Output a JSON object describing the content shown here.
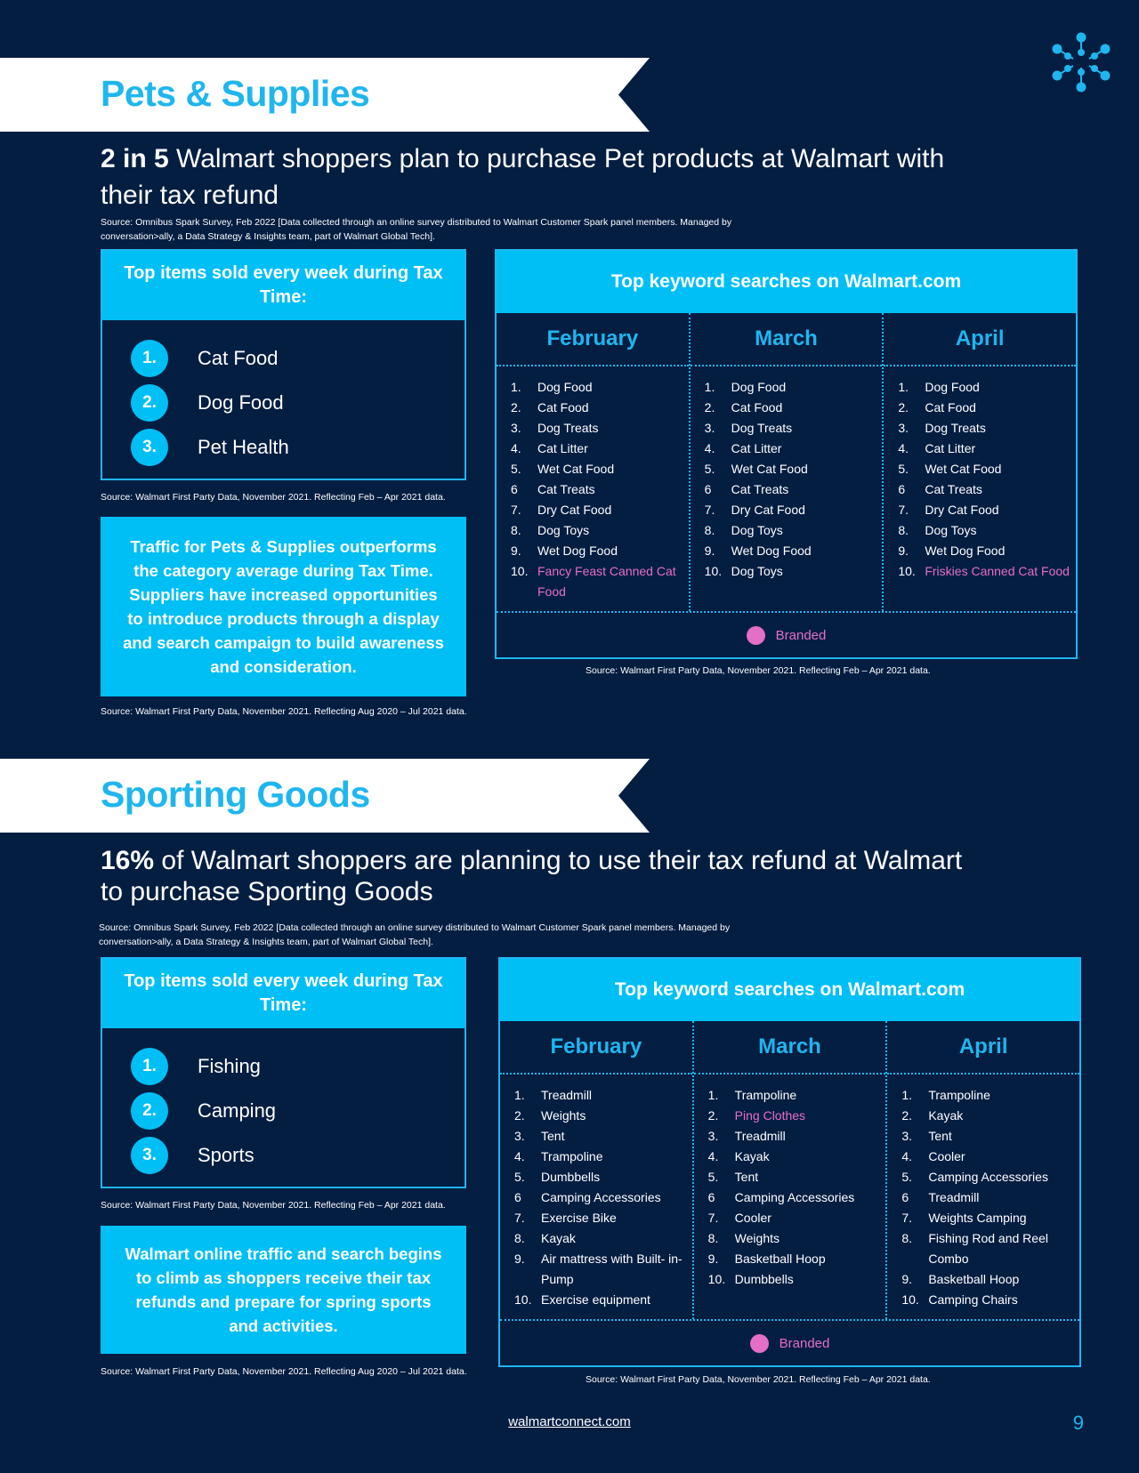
{
  "colors": {
    "background": "#041e42",
    "accent": "#00bff5",
    "branded": "#e46fc7",
    "banner": "#ffffff"
  },
  "logo": {
    "icon": "spark-icon"
  },
  "sections": [
    {
      "title": "Pets & Supplies",
      "headline_bold": "2 in 5",
      "headline_rest": " Walmart shoppers plan to purchase Pet products at Walmart with their tax refund",
      "survey_source": "Source: Omnibus Spark Survey, Feb 2022 [Data collected through an online survey distributed to Walmart Customer Spark panel members. Managed by conversation>ally, a Data Strategy & Insights team, part of Walmart Global Tech].",
      "top_items": {
        "title": "Top items sold every week during Tax Time:",
        "items": [
          {
            "num": "1.",
            "label": "Cat Food"
          },
          {
            "num": "2.",
            "label": "Dog Food"
          },
          {
            "num": "3.",
            "label": "Pet Health"
          }
        ],
        "source": "Source: Walmart First Party Data, November 2021. Reflecting Feb – Apr 2021 data."
      },
      "info": {
        "text": "Traffic for Pets & Supplies outperforms the category average during Tax Time. Suppliers have increased opportunities to introduce products through a display and search campaign to build awareness and consideration.",
        "source": "Source: Walmart First Party Data, November 2021. Reflecting  Aug 2020 – Jul 2021 data."
      },
      "keywords": {
        "title": "Top keyword searches on Walmart.com",
        "columns": [
          {
            "month": "February",
            "items": [
              {
                "n": "1.",
                "t": "Dog Food",
                "branded": false
              },
              {
                "n": "2.",
                "t": "Cat Food",
                "branded": false
              },
              {
                "n": "3.",
                "t": "Dog Treats",
                "branded": false
              },
              {
                "n": "4.",
                "t": "Cat Litter",
                "branded": false
              },
              {
                "n": "5.",
                "t": "Wet Cat Food",
                "branded": false
              },
              {
                "n": "6",
                "t": "Cat Treats",
                "branded": false
              },
              {
                "n": "7.",
                "t": "Dry Cat Food",
                "branded": false
              },
              {
                "n": "8.",
                "t": "Dog Toys",
                "branded": false
              },
              {
                "n": "9.",
                "t": "Wet Dog Food",
                "branded": false
              },
              {
                "n": "10.",
                "t": "Fancy Feast Canned Cat Food",
                "branded": true
              }
            ]
          },
          {
            "month": "March",
            "items": [
              {
                "n": "1.",
                "t": "Dog Food",
                "branded": false
              },
              {
                "n": "2.",
                "t": "Cat Food",
                "branded": false
              },
              {
                "n": "3.",
                "t": "Dog Treats",
                "branded": false
              },
              {
                "n": "4.",
                "t": "Cat Litter",
                "branded": false
              },
              {
                "n": "5.",
                "t": "Wet Cat Food",
                "branded": false
              },
              {
                "n": "6",
                "t": "Cat Treats",
                "branded": false
              },
              {
                "n": "7.",
                "t": "Dry Cat Food",
                "branded": false
              },
              {
                "n": "8.",
                "t": "Dog Toys",
                "branded": false
              },
              {
                "n": "9.",
                "t": "Wet Dog Food",
                "branded": false
              },
              {
                "n": "10.",
                "t": "Dog Toys",
                "branded": false
              }
            ]
          },
          {
            "month": "April",
            "items": [
              {
                "n": "1.",
                "t": "Dog Food",
                "branded": false
              },
              {
                "n": "2.",
                "t": "Cat Food",
                "branded": false
              },
              {
                "n": "3.",
                "t": "Dog Treats",
                "branded": false
              },
              {
                "n": "4.",
                "t": "Cat Litter",
                "branded": false
              },
              {
                "n": "5.",
                "t": "Wet Cat Food",
                "branded": false
              },
              {
                "n": "6",
                "t": "Cat Treats",
                "branded": false
              },
              {
                "n": "7.",
                "t": "Dry Cat Food",
                "branded": false
              },
              {
                "n": "8.",
                "t": "Dog Toys",
                "branded": false
              },
              {
                "n": "9.",
                "t": "Wet Dog Food",
                "branded": false
              },
              {
                "n": "10.",
                "t": "Friskies Canned Cat Food",
                "branded": true
              }
            ]
          }
        ],
        "legend": "Branded",
        "source": "Source: Walmart First Party Data, November 2021. Reflecting Feb – Apr 2021 data."
      }
    },
    {
      "title": "Sporting Goods",
      "headline_bold": "16%",
      "headline_rest": " of Walmart shoppers are planning to use their tax refund at Walmart to purchase Sporting Goods",
      "survey_source": "Source: Omnibus Spark Survey, Feb 2022 [Data collected through an online survey distributed to Walmart Customer Spark panel members. Managed by conversation>ally, a Data Strategy & Insights team, part of Walmart Global Tech].",
      "top_items": {
        "title": "Top items sold every week during Tax Time:",
        "items": [
          {
            "num": "1.",
            "label": "Fishing"
          },
          {
            "num": "2.",
            "label": "Camping"
          },
          {
            "num": "3.",
            "label": "Sports"
          }
        ],
        "source": "Source: Walmart First Party Data, November 2021. Reflecting Feb – Apr 2021 data."
      },
      "info": {
        "text": "Walmart online traffic and search begins to climb as shoppers receive their tax refunds and prepare for spring sports and activities.",
        "source": "Source: Walmart First Party Data, November 2021. Reflecting Aug 2020 – Jul 2021 data."
      },
      "keywords": {
        "title": "Top keyword searches on Walmart.com",
        "columns": [
          {
            "month": "February",
            "items": [
              {
                "n": "1.",
                "t": "Treadmill",
                "branded": false
              },
              {
                "n": "2.",
                "t": "Weights",
                "branded": false
              },
              {
                "n": "3.",
                "t": "Tent",
                "branded": false
              },
              {
                "n": "4.",
                "t": "Trampoline",
                "branded": false
              },
              {
                "n": "5.",
                "t": "Dumbbells",
                "branded": false
              },
              {
                "n": "6",
                "t": "Camping Accessories",
                "branded": false
              },
              {
                "n": "7.",
                "t": "Exercise Bike",
                "branded": false
              },
              {
                "n": "8.",
                "t": "Kayak",
                "branded": false
              },
              {
                "n": "9.",
                "t": "Air mattress with Built-  in-Pump",
                "branded": false
              },
              {
                "n": "10.",
                "t": "Exercise equipment",
                "branded": false
              }
            ]
          },
          {
            "month": "March",
            "items": [
              {
                "n": "1.",
                "t": "Trampoline",
                "branded": false
              },
              {
                "n": "2.",
                "t": "Ping Clothes",
                "branded": true
              },
              {
                "n": "3.",
                "t": "Treadmill",
                "branded": false
              },
              {
                "n": "4.",
                "t": "Kayak",
                "branded": false
              },
              {
                "n": "5.",
                "t": "Tent",
                "branded": false
              },
              {
                "n": "6",
                "t": "Camping Accessories",
                "branded": false
              },
              {
                "n": "7.",
                "t": "Cooler",
                "branded": false
              },
              {
                "n": "8.",
                "t": "Weights",
                "branded": false
              },
              {
                "n": "9.",
                "t": "Basketball Hoop",
                "branded": false
              },
              {
                "n": "10.",
                "t": "Dumbbells",
                "branded": false
              }
            ]
          },
          {
            "month": "April",
            "items": [
              {
                "n": "1.",
                "t": "Trampoline",
                "branded": false
              },
              {
                "n": "2.",
                "t": "Kayak",
                "branded": false
              },
              {
                "n": "3.",
                "t": "Tent",
                "branded": false
              },
              {
                "n": "4.",
                "t": "Cooler",
                "branded": false
              },
              {
                "n": "5.",
                "t": "Camping Accessories",
                "branded": false
              },
              {
                "n": "6",
                "t": "Treadmill",
                "branded": false
              },
              {
                "n": "7.",
                "t": "Weights Camping",
                "branded": false
              },
              {
                "n": "8.",
                "t": "Fishing Rod and Reel Combo",
                "branded": false
              },
              {
                "n": "9.",
                "t": "Basketball Hoop",
                "branded": false
              },
              {
                "n": "10.",
                "t": "Camping Chairs",
                "branded": false
              }
            ]
          }
        ],
        "legend": "Branded",
        "source": "Source: Walmart First Party Data, November 2021. Reflecting Feb – Apr 2021 data."
      }
    }
  ],
  "footer": {
    "link": "walmartconnect.com",
    "page": "9"
  }
}
